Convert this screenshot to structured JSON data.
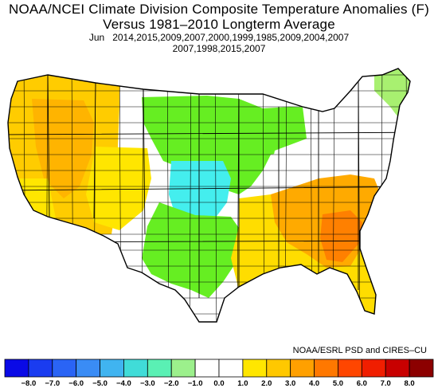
{
  "title": {
    "line1": "NOAA/NCEI Climate Division Composite Temperature Anomalies (F)",
    "line2": "Versus 1981–2010 Longterm Average",
    "month": "Jun",
    "years_line1": "2014,2015,2009,2007,2000,1999,1985,2009,2004,2007",
    "years_line2": "2007,1998,2015,2007"
  },
  "credit": "NOAA/ESRL PSD and CIRES–CU",
  "legend": {
    "labels": [
      "−8.0",
      "−7.0",
      "−6.0",
      "−5.0",
      "−4.0",
      "−3.0",
      "−2.0",
      "−1.0",
      "0.0",
      "1.0",
      "2.0",
      "3.0",
      "4.0",
      "5.0",
      "6.0",
      "7.0",
      "8.0"
    ],
    "colors": [
      "#0a0ae6",
      "#1a3cf0",
      "#2a64f5",
      "#3a8cf5",
      "#40b4f0",
      "#40dcd8",
      "#5af0b4",
      "#9cf08c",
      "#ffffff",
      "#ffffff",
      "#ffe600",
      "#ffc800",
      "#ffa000",
      "#ff7800",
      "#ff4600",
      "#f01e00",
      "#c80000",
      "#8c0000"
    ]
  },
  "map": {
    "regions": [
      {
        "name": "pacific-northwest-and-west",
        "color": "#ffcc00"
      },
      {
        "name": "great-basin-interior",
        "color": "#ffb400"
      },
      {
        "name": "southern-rockies",
        "color": "#ffe600"
      },
      {
        "name": "northern-plains-upper-midwest",
        "color": "#66ee22"
      },
      {
        "name": "central-plains-cool-core",
        "color": "#44eeee"
      },
      {
        "name": "southern-plains-texas",
        "color": "#66ee22"
      },
      {
        "name": "gulf-coast-southeast",
        "color": "#ffdd00"
      },
      {
        "name": "carolinas-georgia-warm",
        "color": "#ffaa00"
      },
      {
        "name": "georgia-warmest",
        "color": "#ff8000"
      },
      {
        "name": "northeast-new-england",
        "color": "#a8f070"
      },
      {
        "name": "midwest-near-normal",
        "color": "#ffffff"
      }
    ]
  }
}
